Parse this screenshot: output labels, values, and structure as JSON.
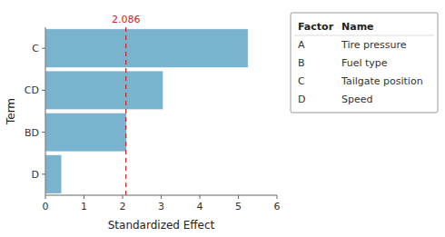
{
  "chart_data": {
    "type": "bar",
    "orientation": "horizontal",
    "categories": [
      "D",
      "BD",
      "CD",
      "C"
    ],
    "values": [
      0.42,
      2.1,
      3.05,
      5.25
    ],
    "color": "#7ab3ce",
    "xlabel": "Standardized Effect",
    "ylabel": "Term",
    "xlim": [
      0,
      6
    ],
    "xticks": [
      0,
      1,
      2,
      3,
      4,
      5,
      6
    ],
    "reference_line": {
      "value": 2.086,
      "label": "2.086",
      "color": "#cc2222"
    },
    "legend_table": {
      "header": [
        "Factor",
        "Name"
      ],
      "rows": [
        [
          "A",
          "Tire pressure"
        ],
        [
          "B",
          "Fuel type"
        ],
        [
          "C",
          "Tailgate position"
        ],
        [
          "D",
          "Speed"
        ]
      ]
    }
  }
}
